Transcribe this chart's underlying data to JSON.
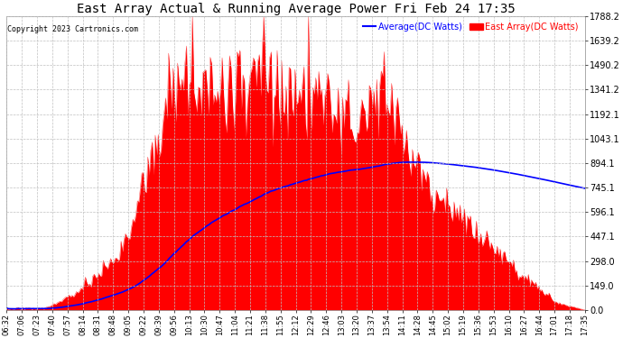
{
  "title": "East Array Actual & Running Average Power Fri Feb 24 17:35",
  "copyright": "Copyright 2023 Cartronics.com",
  "legend_avg": "Average(DC Watts)",
  "legend_east": "East Array(DC Watts)",
  "ylim": [
    0,
    1788.2
  ],
  "yticks": [
    0.0,
    149.0,
    298.0,
    447.1,
    596.1,
    745.1,
    894.1,
    1043.1,
    1192.1,
    1341.2,
    1490.2,
    1639.2,
    1788.2
  ],
  "bg_color": "#ffffff",
  "plot_bg": "#ffffff",
  "fill_color": "red",
  "avg_color": "blue",
  "avg_legend_color": "blue",
  "east_legend_color": "red",
  "title_color": "#000000",
  "grid_color": "#c0c0c0",
  "xtick_labels": [
    "06:32",
    "07:06",
    "07:23",
    "07:40",
    "07:57",
    "08:14",
    "08:31",
    "08:48",
    "09:05",
    "09:22",
    "09:39",
    "09:56",
    "10:13",
    "10:30",
    "10:47",
    "11:04",
    "11:21",
    "11:38",
    "11:55",
    "12:12",
    "12:29",
    "12:46",
    "13:03",
    "13:20",
    "13:37",
    "13:54",
    "14:11",
    "14:28",
    "14:45",
    "15:02",
    "15:19",
    "15:36",
    "15:53",
    "16:10",
    "16:27",
    "16:44",
    "17:01",
    "17:18",
    "17:35"
  ],
  "n_points": 390
}
